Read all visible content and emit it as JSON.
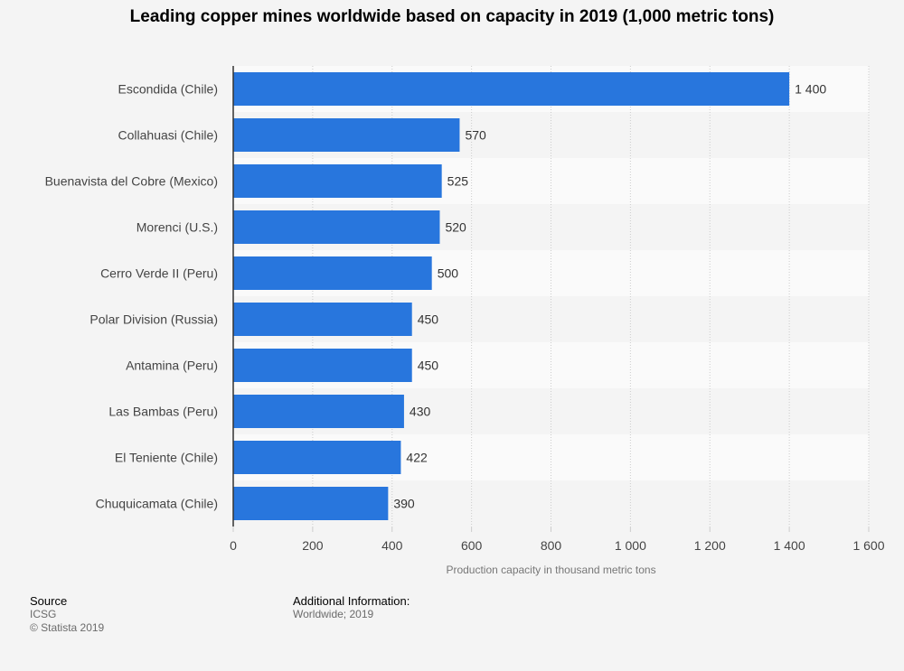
{
  "chart_data": {
    "type": "bar",
    "orientation": "horizontal",
    "title": "Leading copper mines worldwide based on capacity in 2019 (1,000 metric tons)",
    "xlabel": "Production capacity in thousand metric tons",
    "ylabel": "",
    "xlim": [
      0,
      1600
    ],
    "ticks": [
      0,
      200,
      400,
      600,
      800,
      1000,
      1200,
      1400,
      1600
    ],
    "tick_labels": [
      "0",
      "200",
      "400",
      "600",
      "800",
      "1 000",
      "1 200",
      "1 400",
      "1 600"
    ],
    "categories": [
      "Escondida (Chile)",
      "Collahuasi (Chile)",
      "Buenavista del Cobre (Mexico)",
      "Morenci (U.S.)",
      "Cerro Verde II (Peru)",
      "Polar Division (Russia)",
      "Antamina (Peru)",
      "Las Bambas (Peru)",
      "El Teniente (Chile)",
      "Chuquicamata (Chile)"
    ],
    "values": [
      1400,
      570,
      525,
      520,
      500,
      450,
      450,
      430,
      422,
      390
    ],
    "value_labels": [
      "1 400",
      "570",
      "525",
      "520",
      "500",
      "450",
      "450",
      "430",
      "422",
      "390"
    ],
    "grid": true,
    "colors": {
      "bar": "#2876dd",
      "band_light": "#fafafa",
      "band_dark": "#f4f4f4",
      "grid": "#cccccc",
      "axis": "#333333"
    }
  },
  "footer": {
    "source_heading": "Source",
    "source_lines": [
      "ICSG",
      "© Statista 2019"
    ],
    "info_heading": "Additional Information:",
    "info_lines": [
      "Worldwide; 2019"
    ]
  }
}
